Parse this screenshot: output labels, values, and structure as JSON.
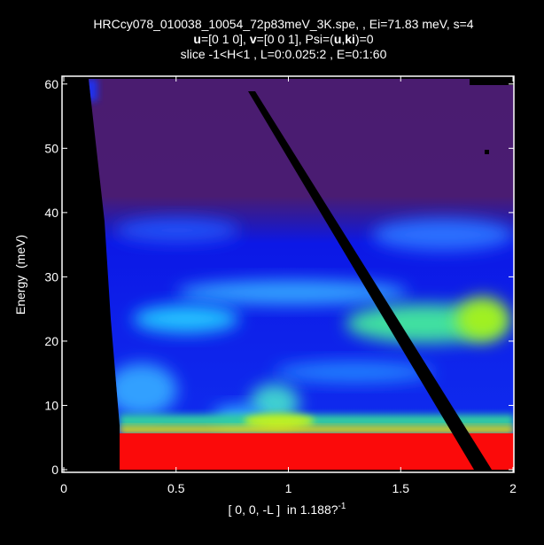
{
  "chart_data": {
    "type": "heatmap",
    "title_lines": [
      [
        {
          "text": "HRCcy078_010038_10054_72p83meV_3K.spe, , Ei=71.83 meV, s=4"
        }
      ],
      [
        {
          "text": "u",
          "bold": true
        },
        {
          "text": "=[0 1 0], "
        },
        {
          "text": "v",
          "bold": true
        },
        {
          "text": "=[0 0 1], Psi=("
        },
        {
          "text": "u",
          "bold": true
        },
        {
          "text": ","
        },
        {
          "text": "ki",
          "bold": true
        },
        {
          "text": ")=0"
        }
      ],
      [
        {
          "text": "slice -1<H<1 , L=0:0.025:2 , E=0:1:60"
        }
      ]
    ],
    "x_label": [
      {
        "text": "[ 0, 0, -L ]  in 1.188?"
      },
      {
        "text": "-1",
        "superscript": true
      }
    ],
    "y_label": "Energy  (meV)",
    "xlim": [
      0,
      2
    ],
    "ylim": [
      -0.3,
      60.5
    ],
    "xticks": [
      0,
      0.5,
      1,
      1.5,
      2
    ],
    "yticks": [
      0,
      10,
      20,
      30,
      40,
      50,
      60
    ],
    "axis_color": "#ffffff"
  }
}
